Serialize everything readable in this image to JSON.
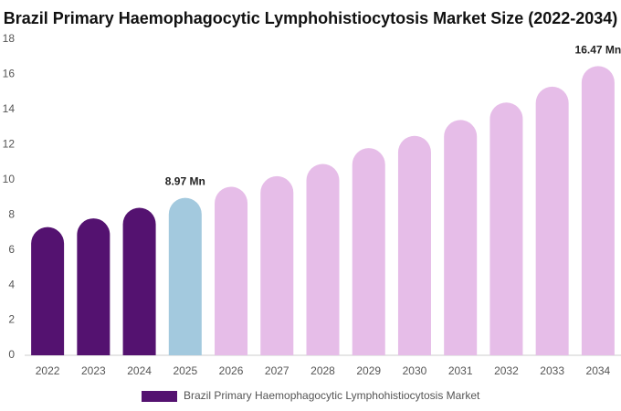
{
  "chart_data": {
    "type": "bar",
    "title": "Brazil Primary Haemophagocytic Lymphohistiocytosis Market Size (2022-2034)",
    "categories": [
      "2022",
      "2023",
      "2024",
      "2025",
      "2026",
      "2027",
      "2028",
      "2029",
      "2030",
      "2031",
      "2032",
      "2033",
      "2034"
    ],
    "series": [
      {
        "name": "Brazil Primary Haemophagocytic Lymphohistiocytosis Market",
        "color": "#541270",
        "values": [
          7.3,
          7.8,
          8.4,
          8.97,
          9.6,
          10.2,
          10.9,
          11.8,
          12.5,
          13.4,
          14.4,
          15.3,
          16.47
        ],
        "colors": [
          "#541270",
          "#541270",
          "#541270",
          "#a3c9de",
          "#e6bde8",
          "#e6bde8",
          "#e6bde8",
          "#e6bde8",
          "#e6bde8",
          "#e6bde8",
          "#e6bde8",
          "#e6bde8",
          "#e6bde8"
        ],
        "value_labels": [
          null,
          null,
          null,
          "8.97 Mn",
          null,
          null,
          null,
          null,
          null,
          null,
          null,
          null,
          "16.47 Mn"
        ]
      }
    ],
    "ylim": [
      0,
      18
    ],
    "yticks": [
      0,
      2,
      4,
      6,
      8,
      10,
      12,
      14,
      16,
      18
    ],
    "grid": false,
    "legend": "bottom"
  }
}
